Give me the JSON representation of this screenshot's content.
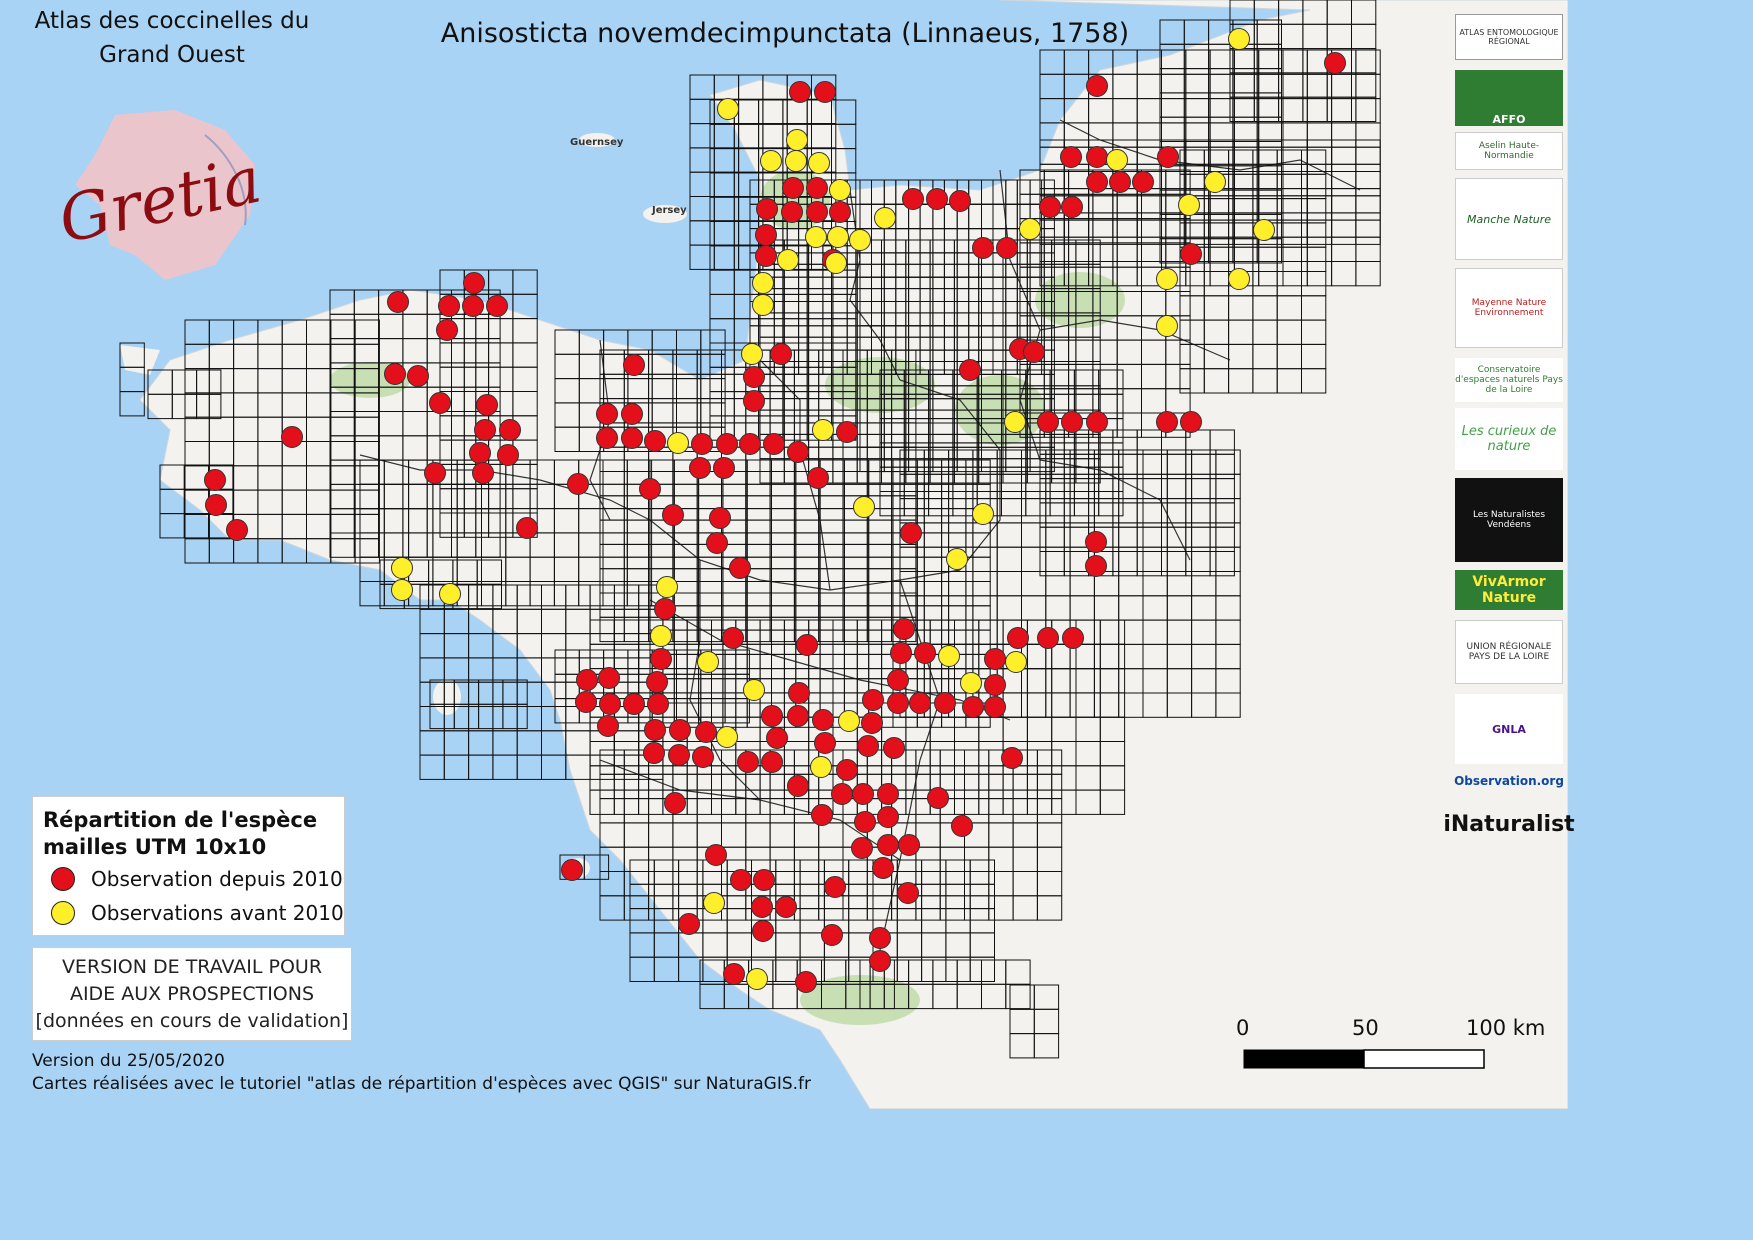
{
  "title": {
    "atlas_line1": "Atlas des coccinelles du",
    "atlas_line2": "Grand Ouest",
    "species": "Anisosticta novemdecimpunctata (Linnaeus, 1758)"
  },
  "brand": {
    "logo_text": "Gretia",
    "color": "#8b0d12"
  },
  "legend": {
    "title_line1": "Répartition de l'espèce",
    "title_line2": "mailles UTM 10x10",
    "items": [
      {
        "label": "Observation depuis 2010",
        "color": "#e3101b"
      },
      {
        "label": "Observations avant 2010",
        "color": "#ffef2a"
      }
    ]
  },
  "notice": {
    "line1": "VERSION DE TRAVAIL POUR",
    "line2": "AIDE AUX PROSPECTIONS",
    "line3": "[données en cours de validation]"
  },
  "footer": {
    "version": "Version du 25/05/2020",
    "credit": "Cartes réalisées avec le tutoriel \"atlas de répartition d'espèces avec QGIS\" sur NaturaGIS.fr"
  },
  "scale": {
    "labels": [
      "0",
      "50",
      "100 km"
    ]
  },
  "place_labels": [
    "Guernsey",
    "Jersey"
  ],
  "partners": [
    "ATLAS ENTOMOLOGIQUE RÉGIONAL",
    "AFFO",
    "Aselin Haute-Normandie",
    "Manche Nature",
    "Mayenne Nature Environnement",
    "Conservatoire d'espaces naturels Pays de la Loire",
    "Les curieux de nature",
    "Les Naturalistes Vendéens",
    "VivArmor Nature",
    "UNION RÉGIONALE PAYS DE LA LOIRE",
    "GNLA",
    "Observation.org",
    "iNaturalist"
  ],
  "colors": {
    "sea": "#a9d3f5",
    "land": "#f3f2ee",
    "grid": "#111111",
    "forest": "#c8dfb4"
  },
  "grid_cell_km": 10
}
